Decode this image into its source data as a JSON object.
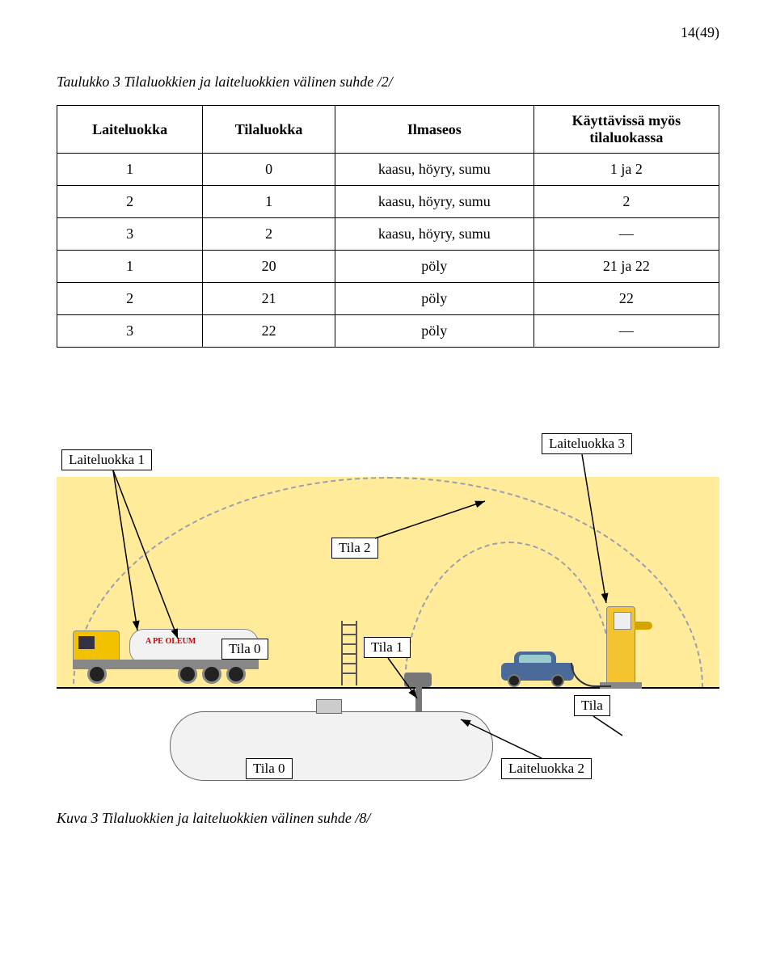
{
  "page_number": "14(49)",
  "table_caption": "Taulukko 3 Tilaluokkien ja laiteluokkien välinen suhde /2/",
  "table": {
    "headers": [
      "Laiteluokka",
      "Tilaluokka",
      "Ilmaseos",
      "Käyttävissä myös tilaluokassa"
    ],
    "rows": [
      [
        "1",
        "0",
        "kaasu, höyry, sumu",
        "1 ja 2"
      ],
      [
        "2",
        "1",
        "kaasu, höyry, sumu",
        "2"
      ],
      [
        "3",
        "2",
        "kaasu, höyry, sumu",
        "—"
      ],
      [
        "1",
        "20",
        "pöly",
        "21 ja 22"
      ],
      [
        "2",
        "21",
        "pöly",
        "22"
      ],
      [
        "3",
        "22",
        "pöly",
        "—"
      ]
    ]
  },
  "figure": {
    "labels": {
      "laiteluokka1": "Laiteluokka 1",
      "laiteluokka2": "Laiteluokka 2",
      "laiteluokka3": "Laiteluokka 3",
      "tila0_a": "Tila 0",
      "tila0_b": "Tila 0",
      "tila1": "Tila 1",
      "tila2": "Tila 2",
      "tila": "Tila"
    },
    "tank_brand": "A PE  OLEUM",
    "colors": {
      "sky": "#ffeb99",
      "dome_dash": "#9aa0b0",
      "truck_yellow": "#f2c200",
      "pump_yellow": "#f4c430",
      "car_blue": "#4a6a9a",
      "tank_fill": "#f2f2f2"
    }
  },
  "figure_caption": "Kuva 3 Tilaluokkien ja laiteluokkien välinen suhde /8/"
}
